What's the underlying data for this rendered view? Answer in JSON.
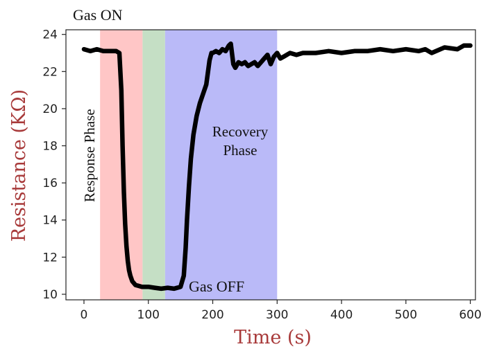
{
  "chart_data": {
    "type": "line",
    "title": "",
    "xlabel": "Time (s)",
    "ylabel": "Resistance (KΩ)",
    "xlim": [
      -28,
      608
    ],
    "ylim": [
      9.7,
      24.25
    ],
    "xticks": [
      0,
      100,
      200,
      300,
      400,
      500,
      600
    ],
    "yticks": [
      10,
      12,
      14,
      16,
      18,
      20,
      22,
      24
    ],
    "grid": false,
    "legend": "none",
    "colors": {
      "line": "#000000",
      "axis_label": "#a83a3a",
      "response_region": "#ffc6c6",
      "gas_hold_region": "#c5dfc5",
      "recovery_region": "#babaf8"
    },
    "regions": [
      {
        "id": "response",
        "x_start": 25,
        "x_end": 91,
        "color": "#ffc6c6"
      },
      {
        "id": "gas-hold",
        "x_start": 91,
        "x_end": 126,
        "color": "#c5dfc5"
      },
      {
        "id": "recovery",
        "x_start": 126,
        "x_end": 300,
        "color": "#babaf8"
      }
    ],
    "annotations": {
      "gas_on": "Gas ON",
      "gas_off": "Gas OFF",
      "response_phase": "Response Phase",
      "recovery_line1": "Recovery",
      "recovery_line2": "Phase"
    },
    "series": [
      {
        "x": [
          0,
          10,
          20,
          30,
          40,
          50,
          55,
          58,
          60,
          62,
          64,
          66,
          68,
          70,
          72,
          75,
          80,
          85,
          90,
          95,
          100,
          110,
          120,
          130,
          140,
          150,
          155,
          158,
          160,
          163,
          166,
          170,
          175,
          180,
          185,
          190,
          195,
          198,
          200,
          205,
          210,
          215,
          220,
          225,
          228,
          232,
          235,
          240,
          245,
          250,
          255,
          260,
          265,
          270,
          275,
          280,
          285,
          290,
          295,
          300,
          305,
          310,
          315,
          320,
          330,
          340,
          350,
          360,
          380,
          400,
          420,
          440,
          460,
          480,
          500,
          520,
          530,
          540,
          560,
          580,
          590,
          600
        ],
        "y": [
          23.2,
          23.1,
          23.2,
          23.1,
          23.1,
          23.1,
          23.0,
          21.0,
          18.0,
          15.5,
          13.8,
          12.6,
          11.8,
          11.3,
          11.0,
          10.7,
          10.5,
          10.45,
          10.4,
          10.4,
          10.4,
          10.35,
          10.3,
          10.35,
          10.3,
          10.4,
          11.0,
          12.5,
          14.0,
          15.8,
          17.3,
          18.6,
          19.6,
          20.3,
          20.8,
          21.3,
          22.6,
          23.0,
          23.0,
          23.1,
          23.0,
          23.2,
          23.1,
          23.4,
          23.5,
          22.4,
          22.2,
          22.5,
          22.4,
          22.5,
          22.3,
          22.4,
          22.5,
          22.3,
          22.5,
          22.7,
          22.9,
          22.4,
          22.8,
          23.0,
          22.7,
          22.8,
          22.9,
          23.0,
          22.9,
          23.0,
          23.0,
          23.0,
          23.1,
          23.0,
          23.1,
          23.1,
          23.2,
          23.1,
          23.2,
          23.1,
          23.2,
          23.0,
          23.3,
          23.2,
          23.4,
          23.4
        ]
      }
    ]
  }
}
